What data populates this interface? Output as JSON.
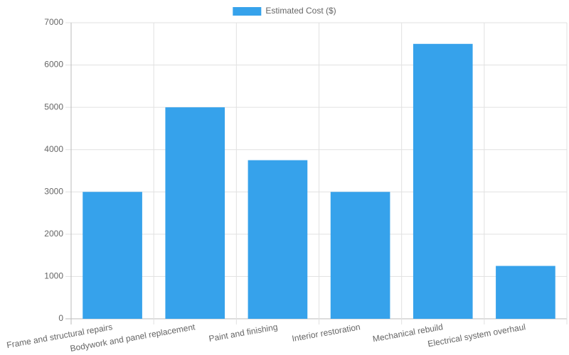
{
  "chart_data": {
    "type": "bar",
    "categories": [
      "Frame and structural repairs",
      "Bodywork and panel replacement",
      "Paint and finishing",
      "Interior restoration",
      "Mechanical rebuild",
      "Electrical system overhaul"
    ],
    "series": [
      {
        "name": "Estimated Cost ($)",
        "color": "#36a2eb",
        "values": [
          3000,
          5000,
          3750,
          3000,
          6500,
          1250
        ]
      }
    ],
    "ylim": [
      0,
      7000
    ],
    "yticks": [
      0,
      1000,
      2000,
      3000,
      4000,
      5000,
      6000,
      7000
    ],
    "grid": true,
    "legend": "top"
  }
}
